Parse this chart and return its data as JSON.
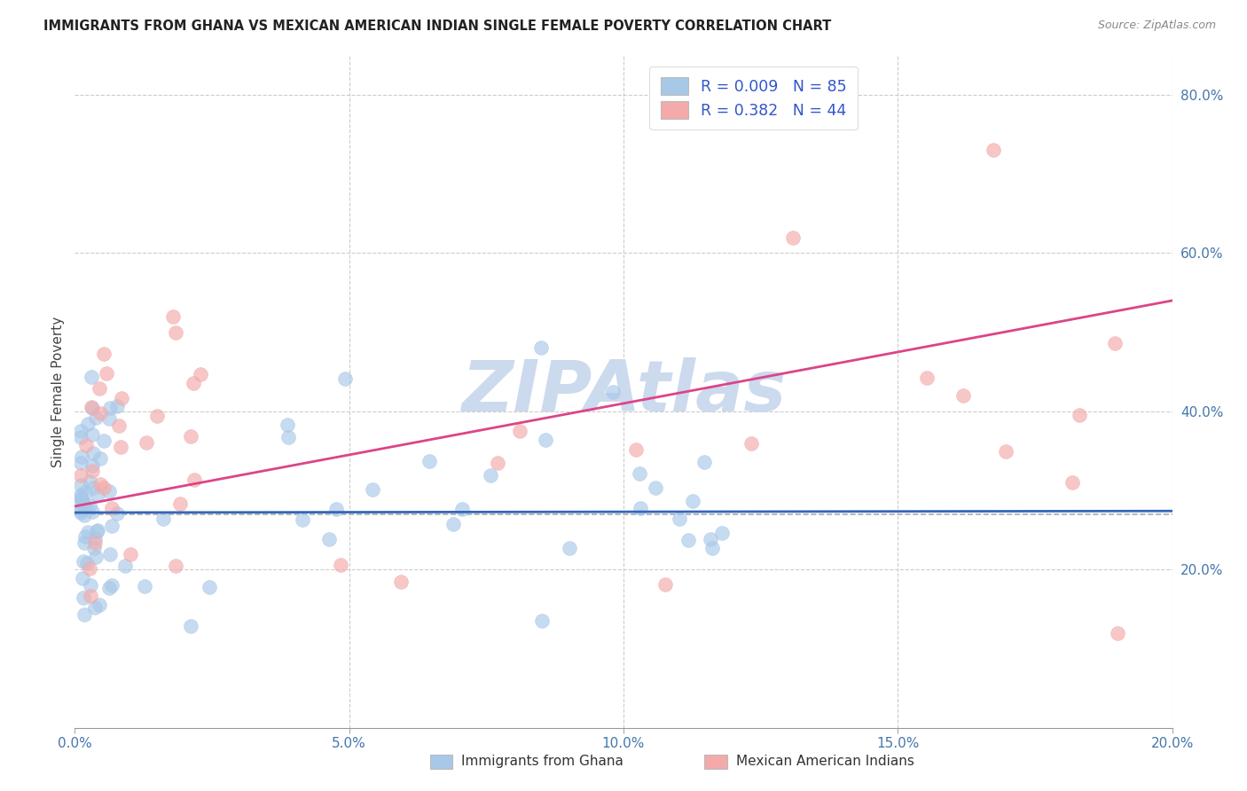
{
  "title": "IMMIGRANTS FROM GHANA VS MEXICAN AMERICAN INDIAN SINGLE FEMALE POVERTY CORRELATION CHART",
  "source": "Source: ZipAtlas.com",
  "ylabel": "Single Female Poverty",
  "legend_label1": "Immigrants from Ghana",
  "legend_label2": "Mexican American Indians",
  "legend_r1": "R = 0.009",
  "legend_n1": "N = 85",
  "legend_r2": "R = 0.382",
  "legend_n2": "N = 44",
  "xlim": [
    0.0,
    0.2
  ],
  "ylim": [
    0.0,
    0.85
  ],
  "yticks_right": [
    0.2,
    0.4,
    0.6,
    0.8
  ],
  "ytick_labels_right": [
    "20.0%",
    "40.0%",
    "60.0%",
    "80.0%"
  ],
  "xtick_vals": [
    0.0,
    0.05,
    0.1,
    0.15,
    0.2
  ],
  "xtick_labels": [
    "0.0%",
    "5.0%",
    "10.0%",
    "15.0%",
    "20.0%"
  ],
  "color_ghana": "#a8c8e8",
  "color_mexican": "#f4aaaa",
  "color_ghana_line": "#3366bb",
  "color_mexican_line": "#dd4488",
  "background_color": "#ffffff",
  "watermark": "ZIPAtlas",
  "watermark_color": "#ccdaee",
  "dashed_line_y": 0.27,
  "ghana_line_x0": 0.0,
  "ghana_line_y0": 0.272,
  "ghana_line_x1": 0.2,
  "ghana_line_y1": 0.274,
  "mex_line_x0": 0.0,
  "mex_line_y0": 0.28,
  "mex_line_x1": 0.2,
  "mex_line_y1": 0.54
}
